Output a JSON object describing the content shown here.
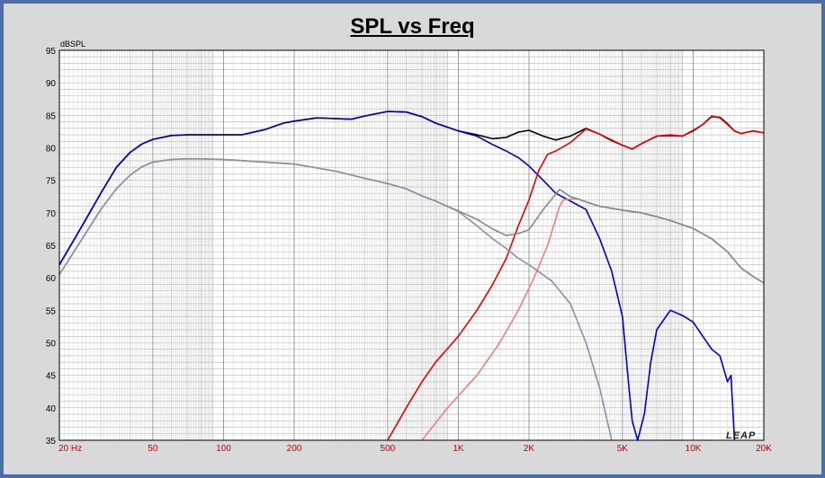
{
  "chart_data": {
    "type": "line",
    "title": "SPL vs Freq",
    "ylabel": "dBSPL",
    "xlabel": "",
    "xscale": "log",
    "xlim": [
      20,
      20000
    ],
    "ylim": [
      35,
      95
    ],
    "grid": true,
    "x_tick_labels": [
      {
        "value": 20,
        "label": "20  Hz"
      },
      {
        "value": 50,
        "label": "50"
      },
      {
        "value": 100,
        "label": "100"
      },
      {
        "value": 200,
        "label": "200"
      },
      {
        "value": 500,
        "label": "500"
      },
      {
        "value": 1000,
        "label": "1K"
      },
      {
        "value": 2000,
        "label": "2K"
      },
      {
        "value": 5000,
        "label": "5K"
      },
      {
        "value": 10000,
        "label": "10K"
      },
      {
        "value": 20000,
        "label": "20K"
      }
    ],
    "y_ticks": [
      35,
      40,
      45,
      50,
      55,
      60,
      65,
      70,
      75,
      80,
      85,
      90,
      95
    ],
    "watermark": "LEAP",
    "series": [
      {
        "color": "#000000",
        "points": [
          [
            20,
            62
          ],
          [
            25,
            68
          ],
          [
            30,
            73
          ],
          [
            35,
            77
          ],
          [
            40,
            79.3
          ],
          [
            45,
            80.6
          ],
          [
            50,
            81.3
          ],
          [
            60,
            81.9
          ],
          [
            70,
            82
          ],
          [
            80,
            82
          ],
          [
            100,
            82
          ],
          [
            120,
            82
          ],
          [
            150,
            82.8
          ],
          [
            180,
            83.8
          ],
          [
            200,
            84.1
          ],
          [
            250,
            84.6
          ],
          [
            300,
            84.5
          ],
          [
            350,
            84.4
          ],
          [
            400,
            84.9
          ],
          [
            500,
            85.6
          ],
          [
            600,
            85.5
          ],
          [
            700,
            84.8
          ],
          [
            800,
            83.8
          ],
          [
            1000,
            82.6
          ],
          [
            1200,
            82
          ],
          [
            1400,
            81.4
          ],
          [
            1600,
            81.6
          ],
          [
            1800,
            82.4
          ],
          [
            2000,
            82.7
          ],
          [
            2300,
            81.8
          ],
          [
            2600,
            81.2
          ],
          [
            3000,
            81.8
          ],
          [
            3500,
            83
          ],
          [
            4000,
            82.1
          ],
          [
            4500,
            81.1
          ],
          [
            5000,
            80.4
          ],
          [
            5500,
            79.8
          ],
          [
            6000,
            80.6
          ],
          [
            7000,
            81.8
          ],
          [
            8000,
            81.9
          ],
          [
            9000,
            81.8
          ],
          [
            10000,
            82.6
          ],
          [
            11000,
            83.6
          ],
          [
            12000,
            84.8
          ],
          [
            13000,
            84.7
          ],
          [
            14000,
            83.7
          ],
          [
            15000,
            82.6
          ],
          [
            16000,
            82.2
          ],
          [
            18000,
            82.6
          ],
          [
            20000,
            82.3
          ]
        ]
      },
      {
        "color": "#0000cc",
        "points": [
          [
            20,
            62
          ],
          [
            25,
            68
          ],
          [
            30,
            73
          ],
          [
            35,
            77
          ],
          [
            40,
            79.3
          ],
          [
            45,
            80.6
          ],
          [
            50,
            81.3
          ],
          [
            60,
            81.9
          ],
          [
            70,
            82
          ],
          [
            80,
            82
          ],
          [
            100,
            82
          ],
          [
            120,
            82
          ],
          [
            150,
            82.8
          ],
          [
            180,
            83.8
          ],
          [
            200,
            84.1
          ],
          [
            250,
            84.6
          ],
          [
            300,
            84.5
          ],
          [
            350,
            84.4
          ],
          [
            400,
            84.9
          ],
          [
            500,
            85.6
          ],
          [
            600,
            85.5
          ],
          [
            700,
            84.8
          ],
          [
            800,
            83.8
          ],
          [
            1000,
            82.6
          ],
          [
            1200,
            81.8
          ],
          [
            1400,
            80.5
          ],
          [
            1600,
            79.5
          ],
          [
            1800,
            78.5
          ],
          [
            2000,
            77.2
          ],
          [
            2300,
            75
          ],
          [
            2600,
            73
          ],
          [
            3000,
            71.8
          ],
          [
            3500,
            70.5
          ],
          [
            4000,
            66
          ],
          [
            4500,
            61
          ],
          [
            5000,
            54
          ],
          [
            5300,
            44
          ],
          [
            5500,
            38
          ],
          [
            5800,
            35
          ],
          [
            6200,
            39
          ],
          [
            6600,
            47
          ],
          [
            7000,
            52
          ],
          [
            8000,
            55
          ],
          [
            9000,
            54.2
          ],
          [
            10000,
            53.2
          ],
          [
            11000,
            51
          ],
          [
            12000,
            49
          ],
          [
            13000,
            48
          ],
          [
            14000,
            44
          ],
          [
            14500,
            45
          ],
          [
            15000,
            35
          ]
        ]
      },
      {
        "color": "#ee0000",
        "points": [
          [
            500,
            35
          ],
          [
            600,
            40
          ],
          [
            700,
            44
          ],
          [
            800,
            47
          ],
          [
            1000,
            51
          ],
          [
            1200,
            55
          ],
          [
            1400,
            59
          ],
          [
            1600,
            63
          ],
          [
            1800,
            68
          ],
          [
            2000,
            72
          ],
          [
            2200,
            76.5
          ],
          [
            2400,
            79
          ],
          [
            2600,
            79.5
          ],
          [
            3000,
            80.8
          ],
          [
            3500,
            82.9
          ],
          [
            4000,
            82.1
          ],
          [
            4500,
            81.2
          ],
          [
            5000,
            80.4
          ],
          [
            5500,
            79.8
          ],
          [
            6000,
            80.6
          ],
          [
            7000,
            81.8
          ],
          [
            8000,
            82
          ],
          [
            9000,
            81.8
          ],
          [
            10000,
            82.7
          ],
          [
            11000,
            83.6
          ],
          [
            12000,
            84.9
          ],
          [
            13000,
            84.6
          ],
          [
            14000,
            83.6
          ],
          [
            15000,
            82.6
          ],
          [
            16000,
            82.2
          ],
          [
            18000,
            82.6
          ],
          [
            20000,
            82.3
          ]
        ]
      },
      {
        "color": "#f08080",
        "points": [
          [
            700,
            35
          ],
          [
            900,
            40
          ],
          [
            1200,
            45
          ],
          [
            1500,
            50
          ],
          [
            1800,
            55
          ],
          [
            2100,
            60
          ],
          [
            2400,
            65
          ],
          [
            2700,
            71
          ],
          [
            2800,
            72
          ],
          [
            3200,
            72.2
          ],
          [
            3600,
            71.5
          ],
          [
            4000,
            71
          ],
          [
            5000,
            70.4
          ],
          [
            6000,
            70
          ],
          [
            7000,
            69.4
          ],
          [
            8000,
            68.8
          ],
          [
            10000,
            67.6
          ],
          [
            12000,
            66
          ],
          [
            14000,
            64
          ],
          [
            16000,
            61.5
          ],
          [
            18000,
            60.2
          ],
          [
            20000,
            59.2
          ]
        ]
      },
      {
        "color": "#888888",
        "points": [
          [
            20,
            60.5
          ],
          [
            25,
            66
          ],
          [
            30,
            70.5
          ],
          [
            35,
            73.7
          ],
          [
            40,
            75.8
          ],
          [
            45,
            77.1
          ],
          [
            50,
            77.8
          ],
          [
            60,
            78.2
          ],
          [
            70,
            78.3
          ],
          [
            80,
            78.3
          ],
          [
            100,
            78.2
          ],
          [
            150,
            77.8
          ],
          [
            200,
            77.5
          ],
          [
            300,
            76.4
          ],
          [
            400,
            75.3
          ],
          [
            500,
            74.5
          ],
          [
            600,
            73.7
          ],
          [
            700,
            72.6
          ],
          [
            800,
            71.8
          ],
          [
            1000,
            70.3
          ],
          [
            1200,
            69
          ],
          [
            1400,
            67.5
          ],
          [
            1600,
            66.5
          ],
          [
            1800,
            66.8
          ],
          [
            2000,
            67.4
          ],
          [
            2300,
            70.5
          ],
          [
            2700,
            73.6
          ],
          [
            3000,
            72.5
          ],
          [
            3500,
            71.7
          ],
          [
            4000,
            71
          ],
          [
            5000,
            70.4
          ],
          [
            6000,
            70
          ],
          [
            7000,
            69.4
          ],
          [
            8000,
            68.8
          ],
          [
            10000,
            67.6
          ],
          [
            12000,
            66
          ],
          [
            14000,
            64
          ],
          [
            16000,
            61.5
          ],
          [
            18000,
            60.2
          ],
          [
            20000,
            59.2
          ]
        ]
      },
      {
        "color": "#8e8ea8",
        "points": [
          [
            20,
            60.5
          ],
          [
            25,
            66
          ],
          [
            30,
            70.5
          ],
          [
            35,
            73.7
          ],
          [
            40,
            75.8
          ],
          [
            45,
            77.1
          ],
          [
            50,
            77.8
          ],
          [
            60,
            78.2
          ],
          [
            70,
            78.3
          ],
          [
            80,
            78.3
          ],
          [
            100,
            78.2
          ],
          [
            150,
            77.8
          ],
          [
            200,
            77.5
          ],
          [
            300,
            76.4
          ],
          [
            400,
            75.3
          ],
          [
            500,
            74.5
          ],
          [
            600,
            73.7
          ],
          [
            700,
            72.6
          ],
          [
            800,
            71.8
          ],
          [
            1000,
            70.2
          ],
          [
            1200,
            68
          ],
          [
            1400,
            66
          ],
          [
            1600,
            64.5
          ],
          [
            1800,
            63
          ],
          [
            2000,
            62
          ],
          [
            2500,
            59.5
          ],
          [
            3000,
            56
          ],
          [
            3500,
            50
          ],
          [
            4000,
            43
          ],
          [
            4500,
            35
          ]
        ]
      }
    ]
  }
}
